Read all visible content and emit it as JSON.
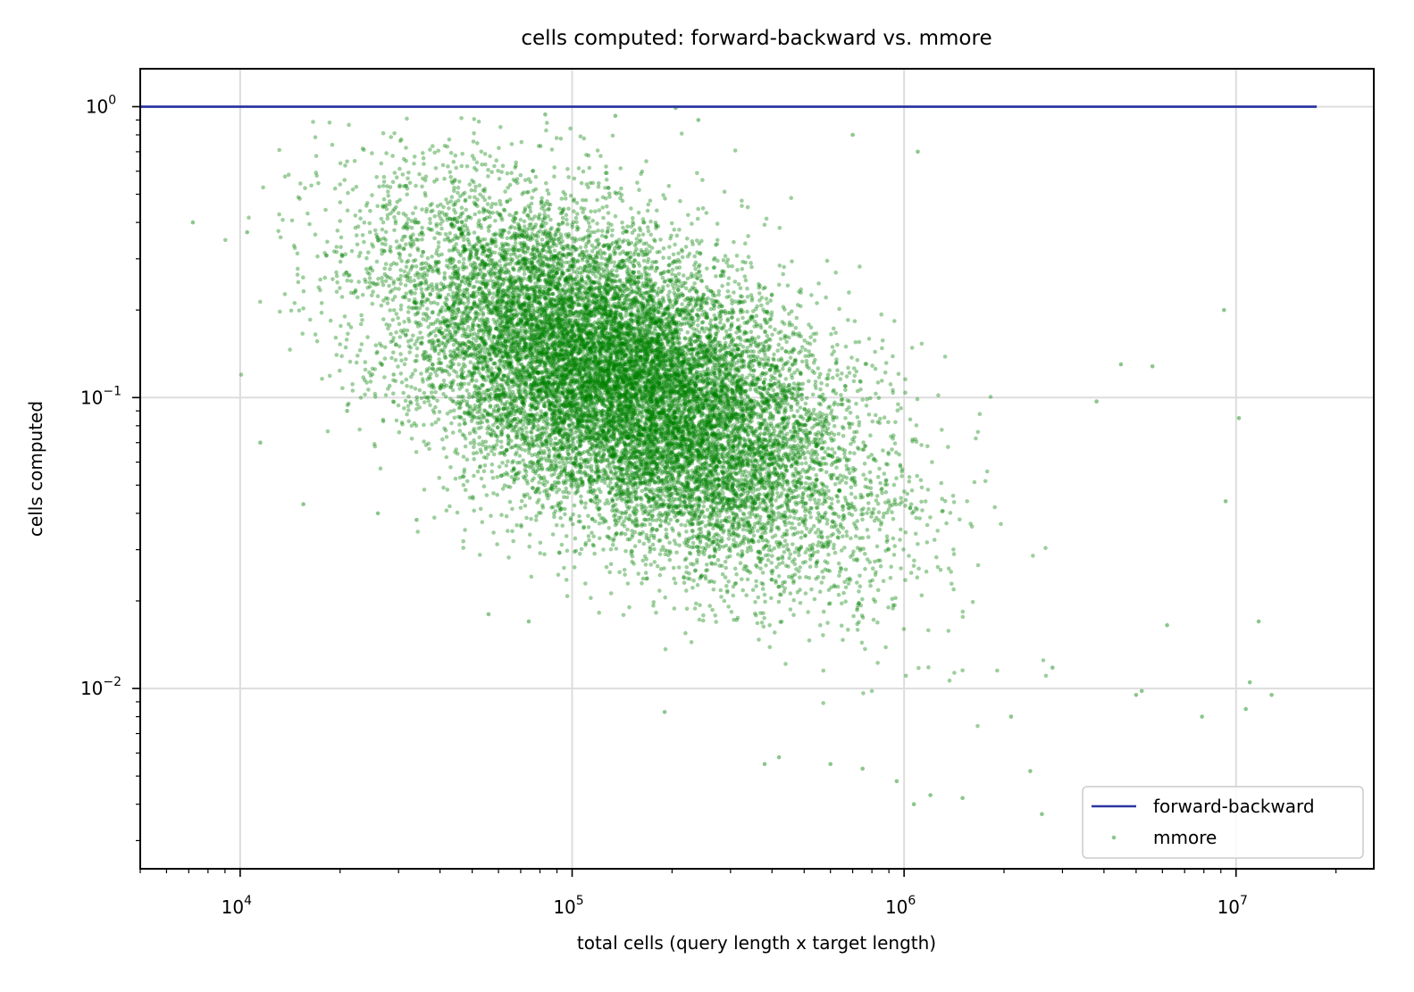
{
  "chart_data": {
    "type": "scatter",
    "title": "cells computed: forward-backward vs. mmore",
    "xlabel": "total cells (query length x target length)",
    "ylabel": "cells computed",
    "x_scale": "log",
    "y_scale": "log",
    "xlim": [
      5000,
      26000000
    ],
    "ylim": [
      0.0024,
      1.35
    ],
    "x_ticks": [
      {
        "value": 10000,
        "base": "10",
        "exp": "4"
      },
      {
        "value": 100000,
        "base": "10",
        "exp": "5"
      },
      {
        "value": 1000000,
        "base": "10",
        "exp": "6"
      },
      {
        "value": 10000000,
        "base": "10",
        "exp": "7"
      }
    ],
    "y_ticks": [
      {
        "value": 1,
        "base": "10",
        "exp": "0"
      },
      {
        "value": 0.1,
        "base": "10",
        "exp": "−1"
      },
      {
        "value": 0.01,
        "base": "10",
        "exp": "−2"
      }
    ],
    "grid": true,
    "legend_position": "bottom-right",
    "series": [
      {
        "name": "forward-backward",
        "kind": "line",
        "color": "#2b35a0",
        "x": [
          5000,
          17500000
        ],
        "y": [
          1.0,
          1.0
        ]
      },
      {
        "name": "mmore",
        "kind": "scatter",
        "color": "#008000",
        "distribution": {
          "n_points": 16000,
          "log10_x_center": 5.15,
          "log10_x_spread": 0.34,
          "log10_y_center": -0.95,
          "log10_y_spread": 0.3,
          "log10_correlation": -0.55,
          "x_range": [
            7000,
            13000000
          ],
          "y_range": [
            0.0035,
            0.98
          ]
        },
        "x": [
          7200,
          11500,
          15500,
          10500,
          9200000,
          10200000,
          11000000,
          11700000,
          12800000,
          9300000,
          10700000,
          5000000,
          5600000,
          2600000,
          2400000,
          1500000,
          1070000,
          3800000,
          4500000,
          7900000,
          6200000,
          5200000,
          2100000,
          2800000,
          1200000,
          950000,
          380000,
          420000,
          600000,
          750000,
          21000,
          26000,
          34000,
          29000,
          56000,
          74000,
          190000,
          83000,
          205000,
          135000,
          240000,
          700000,
          1100000
        ],
        "y": [
          0.4,
          0.07,
          0.043,
          0.37,
          0.2,
          0.085,
          0.0105,
          0.017,
          0.0095,
          0.044,
          0.0085,
          0.0095,
          0.128,
          0.0037,
          0.0052,
          0.0042,
          0.004,
          0.097,
          0.13,
          0.008,
          0.0165,
          0.0098,
          0.008,
          0.0118,
          0.0043,
          0.0048,
          0.0055,
          0.0058,
          0.0055,
          0.0053,
          0.09,
          0.04,
          0.038,
          0.12,
          0.018,
          0.017,
          0.0083,
          0.94,
          0.99,
          0.93,
          0.9,
          0.8,
          0.7
        ]
      }
    ],
    "legend": [
      {
        "label": "forward-backward",
        "marker": "line",
        "color": "#2b35a0"
      },
      {
        "label": "mmore",
        "marker": "dot",
        "color": "#008000"
      }
    ]
  }
}
